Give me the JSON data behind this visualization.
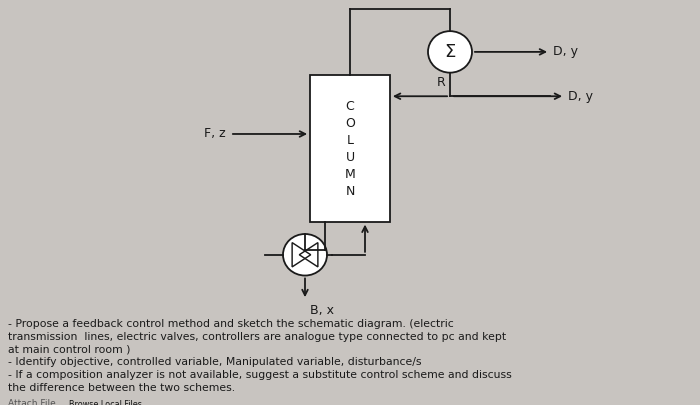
{
  "bg_color": "#c8c4c0",
  "text_color": "#1a1a1a",
  "col_label": "C\nO\nL\nU\nM\nN",
  "label_Fz": "F, z",
  "label_R": "R",
  "label_Dy": "D, y",
  "label_Bx": "B, x",
  "label_sigma": "Σ",
  "body_line1": "- Propose a feedback control method and sketch the schematic diagram. (electric",
  "body_line2": "transmission  lines, electric valves, controllers are analogue type connected to pc and kept",
  "body_line3": "at main control room )",
  "body_line4": "- Identify objective, controlled variable, Manipulated variable, disturbance/s",
  "body_line5": "- If a composition analyzer is not available, suggest a substitute control scheme and discuss",
  "body_line6": "the difference between the two schemes.",
  "attach_text": "Attach File",
  "browse_text": "Browse Local Files"
}
